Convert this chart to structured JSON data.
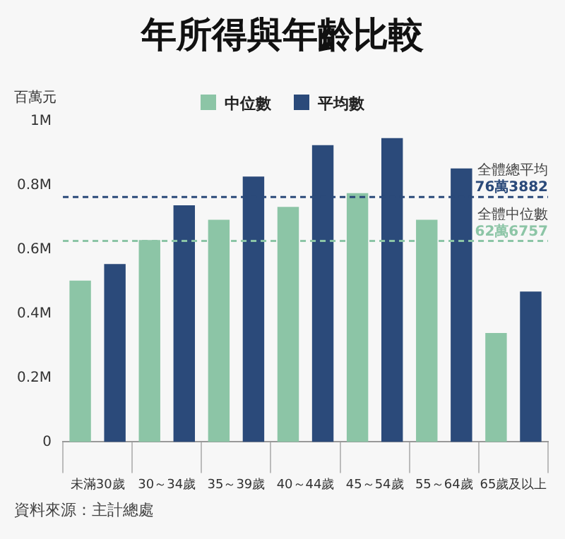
{
  "chart_data": {
    "type": "bar",
    "title": "年所得與年齡比較",
    "ylabel": "百萬元",
    "categories": [
      "未滿30歲",
      "30～34歲",
      "35～39歲",
      "40～44歲",
      "45～54歲",
      "55～64歲",
      "65歲及以上"
    ],
    "series": [
      {
        "name": "中位數",
        "color": "#8cc5a6",
        "values": [
          0.503,
          0.63,
          0.693,
          0.733,
          0.776,
          0.693,
          0.34
        ]
      },
      {
        "name": "平均數",
        "color": "#2b4a7a",
        "values": [
          0.555,
          0.738,
          0.828,
          0.926,
          0.948,
          0.853,
          0.469
        ]
      }
    ],
    "ylim": [
      0,
      1
    ],
    "yticks": [
      0,
      {
        "value": 0.2,
        "label": "0.2M"
      },
      {
        "value": 0.4,
        "label": "0.4M"
      },
      {
        "value": 0.6,
        "label": "0.6M"
      },
      {
        "value": 0.8,
        "label": "0.8M"
      },
      {
        "value": 1,
        "label": "1M"
      }
    ],
    "grid": false,
    "legend": "top",
    "ref_lines": [
      {
        "axis": "y",
        "value": 0.763882,
        "label": "全體總平均",
        "color": "#2b4a7a",
        "line_style": "dashed"
      },
      {
        "axis": "y",
        "value": 0.626757,
        "label": "全體中位數",
        "color": "#8cc5a6",
        "line_style": "dashed"
      }
    ],
    "annotations": [
      {
        "text": "76萬3882",
        "y": 0.763882
      },
      {
        "text": "62萬6757",
        "y": 0.626757
      },
      "資料來源：主計總處"
    ]
  }
}
